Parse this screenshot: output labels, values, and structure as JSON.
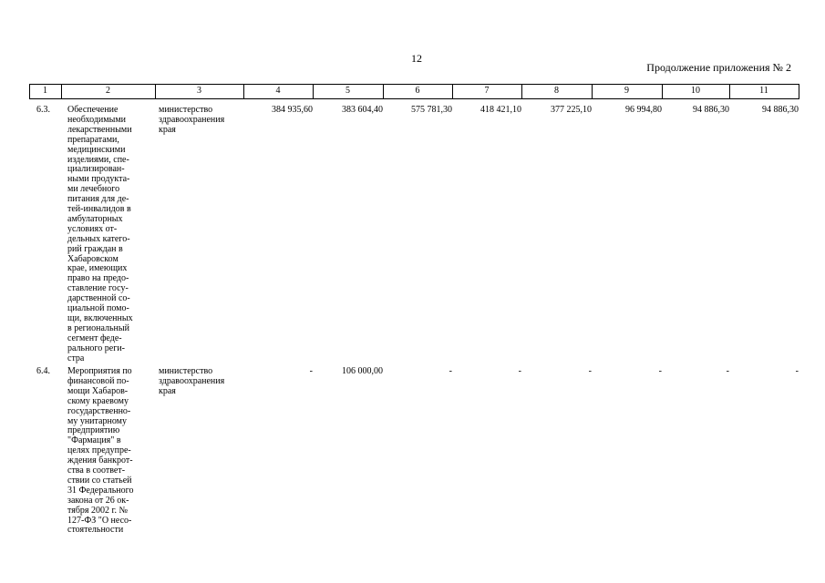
{
  "page_number": "12",
  "caption": "Продолжение приложения № 2",
  "table": {
    "header": [
      "1",
      "2",
      "3",
      "4",
      "5",
      "6",
      "7",
      "8",
      "9",
      "10",
      "11"
    ],
    "rows": [
      {
        "number": "6.3.",
        "description": [
          "Обеспечение",
          "необходимыми",
          "лекарственными",
          "препаратами,",
          "медицинскими",
          "изделиями, спе-",
          "циализирован-",
          "ными продукта-",
          "ми лечебного",
          "питания для де-",
          "тей-инвалидов в",
          "амбулаторных",
          "условиях от-",
          "дельных катего-",
          "рий граждан в",
          "Хабаровском",
          "крае, имеющих",
          "право на предо-",
          "ставление госу-",
          "дарственной со-",
          "циальной помо-",
          "щи, включенных",
          "в региональный",
          "сегмент феде-",
          "рального реги-",
          "стра"
        ],
        "executor": [
          "министерство",
          "здравоохранения",
          "края"
        ],
        "values": [
          "384 935,60",
          "383 604,40",
          "575 781,30",
          "418 421,10",
          "377 225,10",
          "96 994,80",
          "94 886,30",
          "94 886,30"
        ]
      },
      {
        "number": "6.4.",
        "description": [
          "Мероприятия по",
          "финансовой по-",
          "мощи Хабаров-",
          "скому краевому",
          "государственно-",
          "му унитарному",
          "предприятию",
          "\"Фармация\" в",
          "целях предупре-",
          "ждения банкрот-",
          "ства в соответ-",
          "ствии со статьей",
          "31 Федерального",
          "закона от 26 ок-",
          "тября 2002 г. №",
          "127-ФЗ \"О несо-",
          "стоятельности"
        ],
        "executor": [
          "министерство",
          "здравоохранения",
          "края"
        ],
        "values": [
          "-",
          "106 000,00",
          "-",
          "-",
          "-",
          "-",
          "-",
          "-"
        ]
      }
    ]
  }
}
